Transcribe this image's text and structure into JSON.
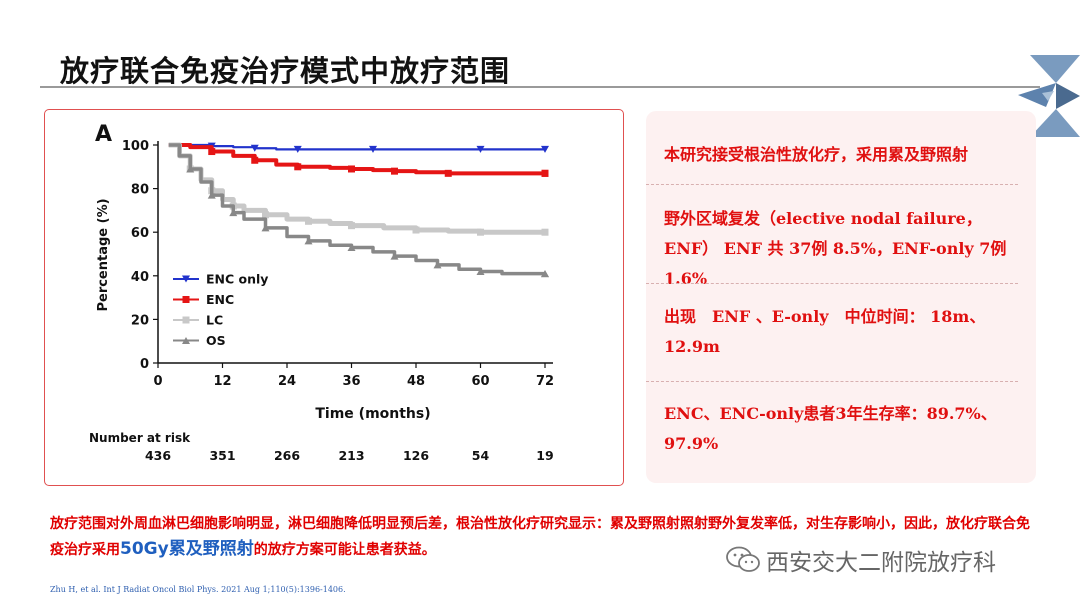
{
  "slide": {
    "title": "放疗联合免疫治疗模式中放疗范围",
    "info": [
      "本研究接受根治性放化疗，采用累及野照射",
      "野外区域复发（elective nodal failure，ENF） ENF 共 37例 8.5%，ENF-only 7例 1.6%",
      "出现　ENF 、E-only　中位时间： 18m、12.9m",
      "ENC、ENC-only患者3年生存率：89.7%、97.9%"
    ],
    "summary_part1": "放疗范围对外周血淋巴细胞影响明显，淋巴细胞降低明显预后差，根治性放化疗研究显示：累及野照射照射野外复发率低，对生存影响小，因此，放化疗联合免疫治疗采用",
    "summary_highlight": "50Gy累及野照射",
    "summary_part2": "的放疗方案可能让患者获益。",
    "citation": "Zhu H, et al. Int J Radiat Oncol Biol Phys. 2021 Aug 1;110(5):1396-1406.",
    "watermark": "西安交大二附院放疗科"
  },
  "chart_data": {
    "type": "line",
    "panel_label": "A",
    "xlabel": "Time (months)",
    "ylabel": "Percentage (%)",
    "xlim": [
      0,
      72
    ],
    "ylim": [
      0,
      100
    ],
    "xticks": [
      0,
      12,
      24,
      36,
      48,
      60,
      72
    ],
    "yticks": [
      0,
      20,
      40,
      60,
      80,
      100
    ],
    "grid": false,
    "legend_position": "bottom-left",
    "series": [
      {
        "name": "ENC only",
        "color": "#2233cc",
        "marker": "triangle-down",
        "x": [
          2,
          6,
          10,
          14,
          18,
          22,
          26,
          32,
          40,
          50,
          60,
          72
        ],
        "y": [
          100,
          100,
          99.5,
          99,
          98.5,
          98,
          98,
          98,
          98,
          98,
          98,
          98
        ]
      },
      {
        "name": "ENC",
        "color": "#e51515",
        "marker": "square",
        "x": [
          2,
          6,
          10,
          14,
          18,
          22,
          26,
          32,
          36,
          40,
          44,
          48,
          54,
          60,
          72
        ],
        "y": [
          100,
          99,
          97,
          95,
          93,
          91,
          90,
          89.5,
          89,
          88.5,
          88,
          87.5,
          87,
          87,
          87
        ]
      },
      {
        "name": "LC",
        "color": "#c8c8c8",
        "marker": "square",
        "x": [
          2,
          4,
          6,
          8,
          10,
          12,
          14,
          16,
          20,
          24,
          28,
          32,
          36,
          42,
          48,
          54,
          60,
          72
        ],
        "y": [
          100,
          95,
          89,
          84,
          79,
          75,
          72,
          70,
          68,
          66,
          65,
          64,
          63,
          62,
          61,
          60.5,
          60,
          60
        ]
      },
      {
        "name": "OS",
        "color": "#888888",
        "marker": "triangle-up",
        "x": [
          2,
          4,
          6,
          8,
          10,
          12,
          14,
          16,
          20,
          24,
          28,
          32,
          36,
          40,
          44,
          48,
          52,
          56,
          60,
          64,
          72
        ],
        "y": [
          100,
          95,
          89,
          83,
          77,
          72,
          69,
          66,
          62,
          58,
          56,
          54,
          53,
          51,
          49,
          47,
          45,
          43,
          42,
          41,
          41
        ]
      }
    ],
    "risk_table": {
      "title": "Number at risk",
      "times": [
        0,
        12,
        24,
        36,
        48,
        60,
        72
      ],
      "values": [
        "436",
        "351",
        "266",
        "213",
        "126",
        "54",
        "19"
      ]
    }
  }
}
